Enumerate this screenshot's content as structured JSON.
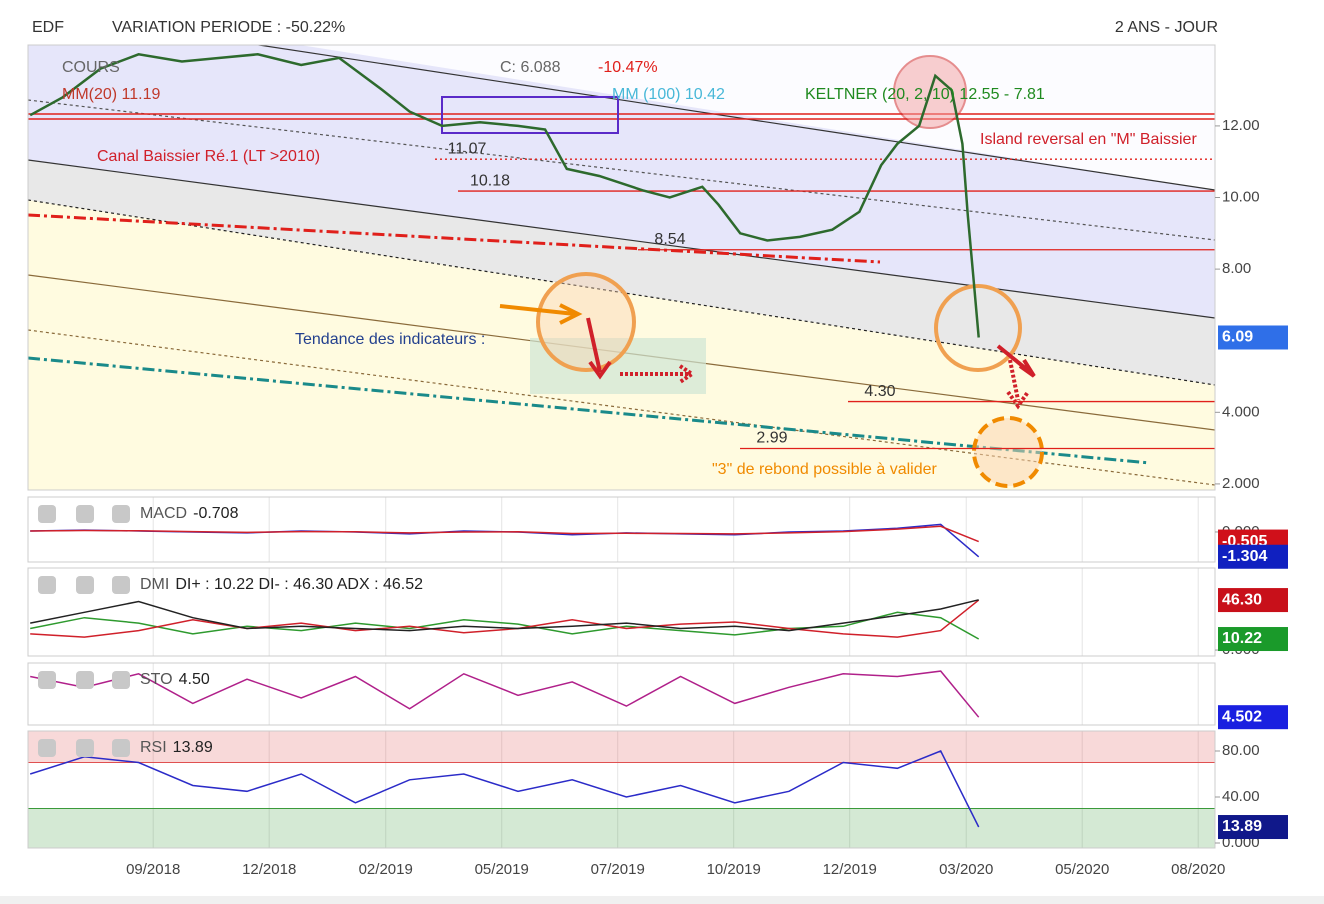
{
  "header": {
    "symbol": "EDF",
    "variation": "VARIATION PERIODE : -50.22%",
    "period": "2 ANS - JOUR"
  },
  "chart_data": [
    {
      "type": "line",
      "title": "COURS",
      "legend": [
        {
          "text": "C: 6.088",
          "color": "#666666"
        },
        {
          "text": "-10.47%",
          "color": "#e0201b"
        },
        {
          "text": "MM(20) 11.19",
          "color": "#c0392b"
        },
        {
          "text": "MM (100) 10.42",
          "color": "#48b8d8"
        },
        {
          "text": "KELTNER (20, 2, 10) 12.55 - 7.81",
          "color": "#1f8a1f"
        }
      ],
      "x": [
        2018.44,
        2018.5,
        2018.57,
        2018.64,
        2018.72,
        2018.79,
        2018.86,
        2018.94,
        2019.01,
        2019.09,
        2019.14,
        2019.2,
        2019.27,
        2019.34,
        2019.39,
        2019.43,
        2019.49,
        2019.57,
        2019.62,
        2019.68,
        2019.71,
        2019.75,
        2019.8,
        2019.86,
        2019.92,
        2019.97,
        2020.01,
        2020.04,
        2020.08,
        2020.11,
        2020.14,
        2020.16,
        2020.17,
        2020.18,
        2020.19
      ],
      "series": [
        {
          "name": "COURS",
          "color": "#2d6a2d",
          "values": [
            12.3,
            12.8,
            13.6,
            14.0,
            13.8,
            13.9,
            14.0,
            13.7,
            13.9,
            13.0,
            12.4,
            12.0,
            12.1,
            12.0,
            11.9,
            10.8,
            10.6,
            10.2,
            10.0,
            10.3,
            9.8,
            9.0,
            8.8,
            8.9,
            9.1,
            9.6,
            10.9,
            11.5,
            12.0,
            13.4,
            13.0,
            11.5,
            9.5,
            7.8,
            6.09
          ]
        }
      ],
      "xlim": [
        2018.436,
        2020.626
      ],
      "xticks": [
        {
          "value": 2018.667,
          "label": "09/2018"
        },
        {
          "value": 2018.881,
          "label": "12/2018"
        },
        {
          "value": 2019.096,
          "label": "02/2019"
        },
        {
          "value": 2019.31,
          "label": "05/2019"
        },
        {
          "value": 2019.524,
          "label": "07/2019"
        },
        {
          "value": 2019.738,
          "label": "10/2019"
        },
        {
          "value": 2019.952,
          "label": "12/2019"
        },
        {
          "value": 2020.167,
          "label": "03/2020"
        },
        {
          "value": 2020.381,
          "label": "05/2020"
        },
        {
          "value": 2020.595,
          "label": "08/2020"
        }
      ],
      "ylim": [
        1.83,
        14.26
      ],
      "yticks": [
        {
          "value": 12,
          "label": "12.00"
        },
        {
          "value": 10,
          "label": "10.00"
        },
        {
          "value": 8,
          "label": "8.00"
        },
        {
          "value": 4,
          "label": "4.000"
        },
        {
          "value": 2,
          "label": "2.000"
        }
      ],
      "levels": [
        {
          "value": 11.07,
          "label": "11.07"
        },
        {
          "value": 10.18,
          "label": "10.18"
        },
        {
          "value": 8.54,
          "label": "8.54"
        },
        {
          "value": 4.3,
          "label": "4.30"
        },
        {
          "value": 2.99,
          "label": "2.99"
        }
      ],
      "badges": [
        {
          "value": 6.09,
          "label": "6.09",
          "color": "#2f6fe8"
        }
      ],
      "annotations": [
        {
          "text": "Canal Baissier Ré.1 (LT >2010)",
          "color": "#d0202a"
        },
        {
          "text": "Island reversal en \"M\" Baissier",
          "color": "#d0202a"
        },
        {
          "text": "Tendance des indicateurs :",
          "color": "#23408e"
        },
        {
          "text": "\"3\" de rebond possible à valider",
          "color": "#f08a00"
        }
      ]
    },
    {
      "type": "line",
      "title": "MACD",
      "legend": "-0.708",
      "x": [
        2018.44,
        2018.54,
        2018.64,
        2018.74,
        2018.84,
        2018.94,
        2019.04,
        2019.14,
        2019.24,
        2019.34,
        2019.44,
        2019.54,
        2019.64,
        2019.74,
        2019.84,
        2019.94,
        2020.04,
        2020.12,
        2020.19
      ],
      "series": [
        {
          "color": "#2b2bc8",
          "values": [
            0.05,
            0.1,
            0.05,
            0.0,
            -0.05,
            0.05,
            0.0,
            -0.1,
            0.05,
            0.0,
            -0.15,
            -0.05,
            -0.1,
            -0.15,
            0.0,
            0.05,
            0.2,
            0.4,
            -1.304
          ]
        },
        {
          "color": "#d0202a",
          "values": [
            0.05,
            0.08,
            0.06,
            0.02,
            -0.02,
            0.02,
            0.01,
            -0.05,
            0.0,
            0.01,
            -0.08,
            -0.07,
            -0.08,
            -0.1,
            -0.05,
            0.02,
            0.15,
            0.3,
            -0.505
          ]
        }
      ],
      "ylim": [
        -1.58,
        1.84
      ],
      "yticks": [
        {
          "value": 0,
          "label": "0.000"
        }
      ],
      "badges": [
        {
          "value": -0.505,
          "label": "-0.505",
          "color": "#d0101a"
        },
        {
          "value": -1.304,
          "label": "-1.304",
          "color": "#1020c0"
        }
      ]
    },
    {
      "type": "line",
      "title": "DMI",
      "legend": "DI+ : 10.22 DI- : 46.30 ADX : 46.52",
      "x": [
        2018.44,
        2018.54,
        2018.64,
        2018.74,
        2018.84,
        2018.94,
        2019.04,
        2019.14,
        2019.24,
        2019.34,
        2019.44,
        2019.54,
        2019.64,
        2019.74,
        2019.84,
        2019.94,
        2020.04,
        2020.12,
        2020.19
      ],
      "series": [
        {
          "color": "#2e9a2e",
          "values": [
            20,
            30,
            25,
            15,
            22,
            18,
            25,
            20,
            28,
            24,
            15,
            22,
            18,
            14,
            20,
            22,
            35,
            30,
            10.22
          ]
        },
        {
          "color": "#d0202a",
          "values": [
            15,
            12,
            18,
            28,
            20,
            25,
            18,
            22,
            16,
            20,
            28,
            20,
            24,
            26,
            20,
            15,
            12,
            18,
            46.3
          ]
        },
        {
          "color": "#222222",
          "values": [
            25,
            35,
            45,
            30,
            20,
            22,
            20,
            18,
            22,
            20,
            22,
            25,
            20,
            22,
            18,
            25,
            32,
            38,
            46.52
          ]
        }
      ],
      "ylim": [
        -5.5,
        76
      ],
      "yticks": [
        {
          "value": 0,
          "label": "0.000"
        }
      ],
      "badges": [
        {
          "value": 46.3,
          "label": "46.30",
          "color": "#c8101a"
        },
        {
          "value": 10.22,
          "label": "10.22",
          "color": "#1a9a2a"
        }
      ]
    },
    {
      "type": "line",
      "title": "STO",
      "legend": "4.50",
      "x": [
        2018.44,
        2018.54,
        2018.64,
        2018.74,
        2018.84,
        2018.94,
        2019.04,
        2019.14,
        2019.24,
        2019.34,
        2019.44,
        2019.54,
        2019.64,
        2019.74,
        2019.84,
        2019.94,
        2020.04,
        2020.12,
        2020.19
      ],
      "series": [
        {
          "color": "#b0208a",
          "values": [
            80,
            60,
            85,
            30,
            75,
            40,
            80,
            20,
            85,
            45,
            70,
            25,
            80,
            30,
            60,
            85,
            80,
            90,
            4.5
          ]
        }
      ],
      "ylim": [
        -10,
        105
      ],
      "yticks": [],
      "badges": [
        {
          "value": 4.502,
          "label": "4.502",
          "color": "#1a20e0"
        }
      ]
    },
    {
      "type": "line",
      "title": "RSI",
      "legend": "13.89",
      "x": [
        2018.44,
        2018.54,
        2018.64,
        2018.74,
        2018.84,
        2018.94,
        2019.04,
        2019.14,
        2019.24,
        2019.34,
        2019.44,
        2019.54,
        2019.64,
        2019.74,
        2019.84,
        2019.94,
        2020.04,
        2020.12,
        2020.19
      ],
      "series": [
        {
          "color": "#2b2bc8",
          "values": [
            60,
            75,
            70,
            50,
            45,
            60,
            35,
            55,
            60,
            45,
            55,
            40,
            50,
            35,
            45,
            70,
            65,
            80,
            13.89
          ]
        }
      ],
      "ylim": [
        -4.35,
        97.4
      ],
      "yticks": [
        {
          "value": 80,
          "label": "80.00"
        },
        {
          "value": 40,
          "label": "40.00"
        },
        {
          "value": 0,
          "label": "0.000"
        }
      ],
      "bands": [
        {
          "value": 70,
          "color": "#e05050"
        },
        {
          "value": 30,
          "color": "#3a9a3a"
        }
      ],
      "badges": [
        {
          "value": 13.89,
          "label": "13.89",
          "color": "#10188a"
        }
      ]
    }
  ]
}
